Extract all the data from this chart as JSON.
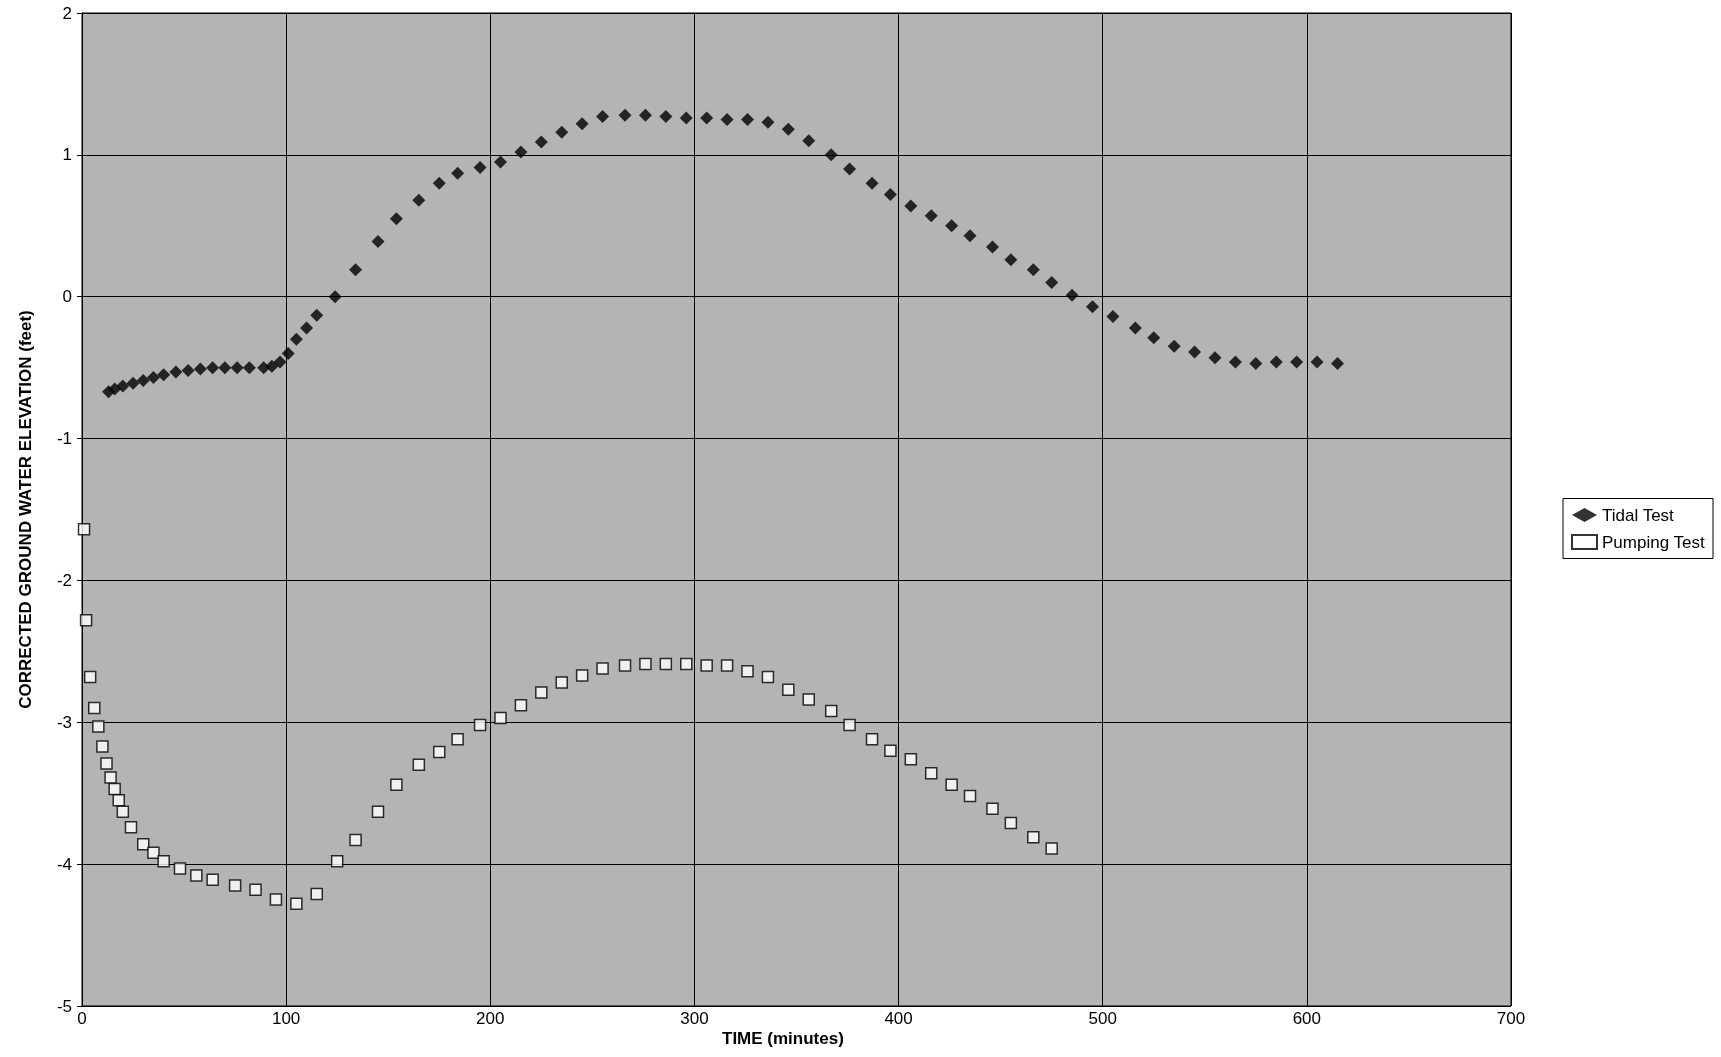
{
  "chart_data": {
    "type": "scatter",
    "xlabel": "TIME (minutes)",
    "ylabel": "CORRECTED GROUND WATER ELEVATION (feet)",
    "xlim": [
      0,
      700
    ],
    "xticks": [
      0,
      100,
      200,
      300,
      400,
      500,
      600,
      700
    ],
    "ylim": [
      -5,
      2
    ],
    "yticks": [
      -5,
      -4,
      -3,
      -2,
      -1,
      0,
      1,
      2
    ],
    "grid": true,
    "legend": "right",
    "series": [
      {
        "name": "Tidal Test",
        "color": "#000000",
        "marker": "diamond",
        "x": [
          13,
          16,
          20,
          25,
          30,
          35,
          40,
          46,
          52,
          58,
          64,
          70,
          76,
          82,
          89,
          93,
          97,
          101,
          105,
          110,
          115,
          124,
          134,
          145,
          154,
          165,
          175,
          184,
          195,
          205,
          215,
          225,
          235,
          245,
          255,
          266,
          276,
          286,
          296,
          306,
          316,
          326,
          336,
          346,
          356,
          367,
          376,
          387,
          396,
          406,
          416,
          426,
          435,
          446,
          455,
          466,
          475,
          485,
          495,
          505,
          516,
          525,
          535,
          545,
          555,
          565,
          575,
          585,
          595,
          605,
          615
        ],
        "values": [
          -0.67,
          -0.65,
          -0.63,
          -0.61,
          -0.59,
          -0.57,
          -0.55,
          -0.53,
          -0.52,
          -0.51,
          -0.5,
          -0.5,
          -0.5,
          -0.5,
          -0.5,
          -0.49,
          -0.46,
          -0.4,
          -0.3,
          -0.22,
          -0.13,
          0,
          0.19,
          0.39,
          0.55,
          0.68,
          0.8,
          0.87,
          0.91,
          0.95,
          1.02,
          1.09,
          1.16,
          1.22,
          1.27,
          1.28,
          1.28,
          1.27,
          1.26,
          1.26,
          1.25,
          1.25,
          1.23,
          1.18,
          1.1,
          1,
          0.9,
          0.8,
          0.72,
          0.64,
          0.57,
          0.5,
          0.43,
          0.35,
          0.26,
          0.19,
          0.1,
          0.01,
          -0.07,
          -0.14,
          -0.22,
          -0.29,
          -0.35,
          -0.39,
          -0.43,
          -0.46,
          -0.47,
          -0.46,
          -0.46,
          -0.46,
          -0.47
        ]
      },
      {
        "name": "Pumping Test",
        "color": "#ffffff",
        "marker": "square",
        "x": [
          1,
          2,
          4,
          6,
          8,
          10,
          12,
          14,
          16,
          18,
          20,
          24,
          30,
          35,
          40,
          48,
          56,
          64,
          75,
          85,
          95,
          105,
          115,
          125,
          134,
          145,
          154,
          165,
          175,
          184,
          195,
          205,
          215,
          225,
          235,
          245,
          255,
          266,
          276,
          286,
          296,
          306,
          316,
          326,
          336,
          346,
          356,
          367,
          376,
          387,
          396,
          406,
          416,
          426,
          435,
          446,
          455,
          466,
          475
        ],
        "values": [
          -1.64,
          -2.28,
          -2.68,
          -2.9,
          -3.03,
          -3.17,
          -3.29,
          -3.39,
          -3.47,
          -3.55,
          -3.63,
          -3.74,
          -3.86,
          -3.92,
          -3.98,
          -4.03,
          -4.08,
          -4.11,
          -4.15,
          -4.18,
          -4.25,
          -4.28,
          -4.21,
          -3.98,
          -3.83,
          -3.63,
          -3.44,
          -3.3,
          -3.21,
          -3.12,
          -3.02,
          -2.97,
          -2.88,
          -2.79,
          -2.72,
          -2.67,
          -2.62,
          -2.6,
          -2.59,
          -2.59,
          -2.59,
          -2.6,
          -2.6,
          -2.64,
          -2.68,
          -2.77,
          -2.84,
          -2.92,
          -3.02,
          -3.12,
          -3.2,
          -3.26,
          -3.36,
          -3.44,
          -3.52,
          -3.61,
          -3.71,
          -3.81,
          -3.89
        ]
      }
    ]
  }
}
